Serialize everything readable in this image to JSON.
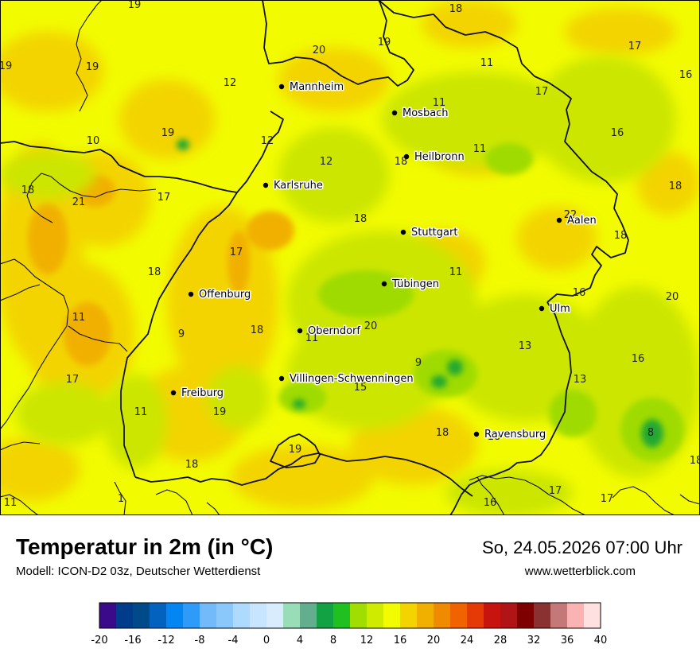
{
  "map": {
    "colors": {
      "base": "#f2fb00",
      "warm": "#f3d400",
      "warmer": "#f1b000",
      "cool": "#cce600",
      "cooler": "#9fdb00",
      "coolest": "#3fba1a",
      "cold": "#21a832",
      "border": "#111111"
    },
    "cities": [
      {
        "name": "Mannheim"
      },
      {
        "name": "Mosbach"
      },
      {
        "name": "Heilbronn"
      },
      {
        "name": "Karlsruhe"
      },
      {
        "name": "Stuttgart"
      },
      {
        "name": "Aalen"
      },
      {
        "name": "Tübingen"
      },
      {
        "name": "Offenburg"
      },
      {
        "name": "Ulm"
      },
      {
        "name": "Oberndorf"
      },
      {
        "name": "Villingen-Schwenningen"
      },
      {
        "name": "Freiburg"
      },
      {
        "name": "Ravensburg"
      }
    ],
    "values": [
      "19",
      "18",
      "19",
      "20",
      "11",
      "17",
      "16",
      "19",
      "19",
      "12",
      "17",
      "19",
      "11",
      "10",
      "16",
      "12",
      "12",
      "18",
      "11",
      "18",
      "21",
      "17",
      "18",
      "22",
      "18",
      "18",
      "17",
      "18",
      "11",
      "16",
      "20",
      "11",
      "18",
      "20",
      "9",
      "11",
      "13",
      "17",
      "16",
      "9",
      "15",
      "13",
      "11",
      "19",
      "18",
      "8",
      "18",
      "19",
      "18",
      "17",
      "1",
      "18",
      "11",
      "16",
      "17"
    ]
  },
  "footer": {
    "title": "Temperatur in 2m (in °C)",
    "subtitle": "Modell: ICON-D2 03z, Deutscher Wetterdienst",
    "datetime": "So, 24.05.2026 07:00 Uhr",
    "website": "www.wetterblick.com"
  },
  "legend": {
    "ticks": [
      "-20",
      "-16",
      "-12",
      "-8",
      "-4",
      "0",
      "4",
      "8",
      "12",
      "16",
      "20",
      "24",
      "28",
      "32",
      "36",
      "40"
    ],
    "colors": [
      "#3b0a8a",
      "#013c8c",
      "#014a8a",
      "#0262bd",
      "#0486f2",
      "#2f9bf8",
      "#72baf9",
      "#8ac8fb",
      "#addafd",
      "#c7e5fe",
      "#d9ecfe",
      "#99dcb8",
      "#62ae8e",
      "#12a243",
      "#20c021",
      "#9fde00",
      "#cfeb00",
      "#f2fb00",
      "#f3d400",
      "#f1b000",
      "#f08a00",
      "#f06300",
      "#e63a06",
      "#c8140f",
      "#b01416",
      "#7e0000",
      "#8a3232",
      "#c47878",
      "#fbb2b2",
      "#ffe0e0"
    ]
  }
}
